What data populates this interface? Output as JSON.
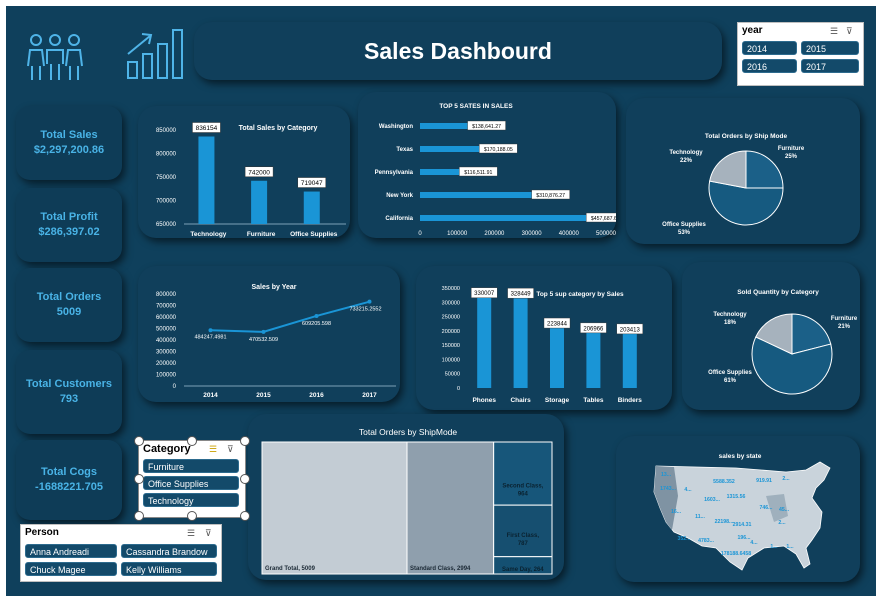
{
  "dashboard": {
    "title": "Sales Dashbourd",
    "colors": {
      "background": "#0f405c",
      "card": "#103f5b",
      "accent": "#1a95d6",
      "kpi_text": "#49b3e6",
      "pie_dark": "#1b6088",
      "pie_mid": "#165a80",
      "pie_light": "#a6b2bd"
    }
  },
  "kpis": [
    {
      "label": "Total Sales",
      "value": "$2,297,200.86"
    },
    {
      "label": "Total Profit",
      "value": "$286,397.02"
    },
    {
      "label": "Total Orders",
      "value": "5009"
    },
    {
      "label": "Total Customers",
      "value": "793"
    },
    {
      "label": "Total Cogs",
      "value": "-1688221.705"
    }
  ],
  "year_slicer": {
    "header": "year",
    "items": [
      "2014",
      "2015",
      "2016",
      "2017"
    ]
  },
  "category_slicer": {
    "header": "Category",
    "items": [
      "Furniture",
      "Office Supplies",
      "Technology"
    ]
  },
  "person_slicer": {
    "header": "Person",
    "items": [
      "Anna Andreadi",
      "Cassandra Brandow",
      "Chuck Magee",
      "Kelly Williams"
    ]
  },
  "chart_data": [
    {
      "id": "sales-by-category",
      "type": "bar",
      "title": "Total Sales by Category",
      "categories": [
        "Technology",
        "Furniture",
        "Office Supplies"
      ],
      "values": [
        836154,
        742000,
        719047
      ],
      "data_labels": [
        "836154",
        "742000",
        "719047"
      ],
      "ylim": [
        650000,
        850000
      ],
      "yticks": [
        "850000",
        "800000",
        "750000",
        "700000",
        "650000"
      ]
    },
    {
      "id": "top-states",
      "type": "bar",
      "orientation": "horizontal",
      "title": "TOP 5 SATES IN SALES",
      "categories": [
        "Washington",
        "Texas",
        "Pennsylvania",
        "New York",
        "California"
      ],
      "values": [
        138641.27,
        170188.05,
        116511.91,
        310876.27,
        457687.63
      ],
      "data_labels": [
        "$138,641.27",
        "$170,188.05",
        "$116,511.91",
        "$310,876.27",
        "$457,687.63"
      ],
      "xlim": [
        0,
        500000
      ],
      "xticks": [
        "0",
        "100000",
        "200000",
        "300000",
        "400000",
        "500000"
      ]
    },
    {
      "id": "orders-by-shipmode-pie",
      "type": "pie",
      "title": "Total Orders by Ship Mode",
      "slices": [
        {
          "name": "Technology",
          "value": 22,
          "label": "22%"
        },
        {
          "name": "Furniture",
          "value": 25,
          "label": "25%"
        },
        {
          "name": "Office Supplies",
          "value": 53,
          "label": "53%"
        }
      ]
    },
    {
      "id": "sales-by-year",
      "type": "line",
      "title": "Sales by Year",
      "x": [
        "2014",
        "2015",
        "2016",
        "2017"
      ],
      "values": [
        484247.4981,
        470532.509,
        609205.598,
        733215.2552
      ],
      "data_labels": [
        "484247.4981",
        "470532.509",
        "609205.598",
        "733215.2552"
      ],
      "ylim": [
        0,
        800000
      ],
      "yticks": [
        "800000",
        "700000",
        "600000",
        "500000",
        "400000",
        "300000",
        "200000",
        "100000",
        "0"
      ]
    },
    {
      "id": "top-subcategory",
      "type": "bar",
      "title": "Top 5 sup category by Sales",
      "categories": [
        "Phones",
        "Chairs",
        "Storage",
        "Tables",
        "Binders"
      ],
      "values": [
        330007,
        328449,
        223844,
        206966,
        203413
      ],
      "data_labels": [
        "330007",
        "328449",
        "223844",
        "206966",
        "203413"
      ],
      "ylim": [
        0,
        350000
      ],
      "yticks": [
        "350000",
        "300000",
        "250000",
        "200000",
        "150000",
        "100000",
        "50000",
        "0"
      ]
    },
    {
      "id": "sold-quantity-pie",
      "type": "pie",
      "title": "Sold Quantity by Category",
      "slices": [
        {
          "name": "Technology",
          "value": 18,
          "label": "18%"
        },
        {
          "name": "Furniture",
          "value": 21,
          "label": "21%"
        },
        {
          "name": "Office Supplies",
          "value": 61,
          "label": "61%"
        }
      ]
    },
    {
      "id": "orders-by-shipmode-treemap",
      "type": "treemap",
      "title": "Total Orders by ShipMode",
      "items": [
        {
          "name": "Grand Total",
          "value": 5009,
          "label": "Grand Total, 5009"
        },
        {
          "name": "Standard Class",
          "value": 2994,
          "label": "Standard Class, 2994"
        },
        {
          "name": "Second Class",
          "value": 964,
          "label": "Second Class, 964"
        },
        {
          "name": "First Class",
          "value": 787,
          "label": "First Class, 787"
        },
        {
          "name": "Same Day",
          "value": 264,
          "label": "Same Day, 264"
        }
      ]
    },
    {
      "id": "sales-by-state-map",
      "type": "map",
      "title": "sales by state",
      "labels": [
        "13...",
        "5588.352",
        "919.91",
        "2...",
        "1743...",
        "4...",
        "1603...",
        "1315.56",
        "746...",
        "45...",
        "16...",
        "11...",
        "22198...",
        "2914.31",
        "2...",
        "352...",
        "4783...",
        "196...",
        "4...",
        "178188.6458",
        "1...",
        "1..."
      ]
    }
  ]
}
